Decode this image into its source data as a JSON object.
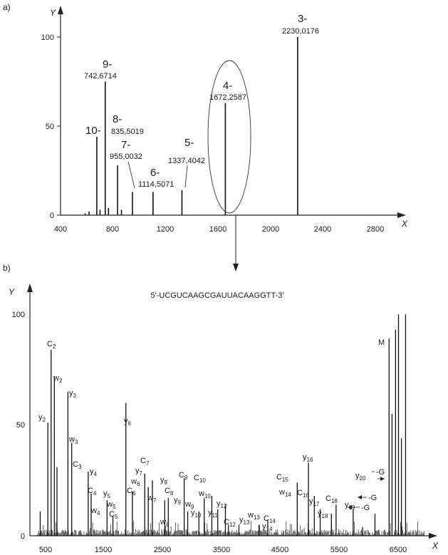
{
  "chart_data": [
    {
      "type": "bar",
      "panel": "a)",
      "xlabel": "X",
      "ylabel": "Y",
      "xlim": [
        400,
        3000
      ],
      "ylim": [
        0,
        110
      ],
      "xticks": [
        "400",
        "800",
        "1200",
        "1600",
        "2000",
        "2400",
        "2800"
      ],
      "yticks": [
        "0",
        "50",
        "100"
      ],
      "series": [
        {
          "name": "peaks",
          "x": [
            590,
            620,
            680,
            705,
            745,
            770,
            840,
            870,
            955,
            1114,
            1337,
            1672,
            2230
          ],
          "values": [
            1,
            2,
            44,
            3,
            75,
            4,
            28,
            3,
            13,
            13,
            14,
            63,
            100
          ]
        }
      ],
      "annotations": [
        {
          "charge": "10-",
          "mz": "",
          "x": 680
        },
        {
          "charge": "9-",
          "mz": "742,6714",
          "x": 745
        },
        {
          "charge": "8-",
          "mz": "835,5019",
          "x": 840
        },
        {
          "charge": "7-",
          "mz": "955,0032",
          "x": 955
        },
        {
          "charge": "6-",
          "mz": "1114,5071",
          "x": 1114
        },
        {
          "charge": "5-",
          "mz": "1337,4042",
          "x": 1337
        },
        {
          "charge": "4-",
          "mz": "1672,2587",
          "x": 1672
        },
        {
          "charge": "3-",
          "mz": "2230,0176",
          "x": 2230
        }
      ]
    },
    {
      "type": "bar",
      "panel": "b)",
      "title": "5'-UCGUCAAGCGAUUACAAGGTT-3'",
      "xlabel": "X",
      "ylabel": "Y",
      "xlim": [
        250,
        7000
      ],
      "ylim": [
        0,
        110
      ],
      "xticks": [
        "500",
        "1500",
        "2500",
        "3500",
        "4500",
        "5500",
        "6500"
      ],
      "yticks": [
        "0",
        "50",
        "100"
      ],
      "series": [
        {
          "name": "fragments",
          "x": [
            425,
            555,
            610,
            665,
            710,
            895,
            960,
            1240,
            1290,
            1560,
            1660,
            1880,
            1990,
            2200,
            2260,
            2330,
            2540,
            2600,
            2870,
            2930,
            3120,
            3210,
            3340,
            3440,
            3570,
            3620,
            3800,
            4140,
            4290,
            4790,
            4980,
            5080,
            5180,
            5370,
            5450,
            5740,
            5900,
            6110,
            6350,
            6400,
            6460,
            6510,
            6560,
            6630
          ],
          "values": [
            11,
            51,
            84,
            72,
            31,
            65,
            42,
            29,
            19,
            16,
            9,
            60,
            20,
            28,
            22,
            25,
            16,
            17,
            26,
            11,
            11,
            17,
            18,
            12,
            14,
            5,
            5,
            5,
            7,
            24,
            33,
            18,
            12,
            10,
            14,
            12,
            4,
            10,
            89,
            55,
            93,
            100,
            44,
            100
          ]
        }
      ],
      "annotations": [
        {
          "base": "C",
          "sub": "2",
          "x": 610
        },
        {
          "base": "w",
          "sub": "2",
          "x": 665
        },
        {
          "base": "y",
          "sub": "2",
          "x": 555
        },
        {
          "base": "y",
          "sub": "3",
          "x": 895
        },
        {
          "base": "w",
          "sub": "3",
          "x": 960
        },
        {
          "base": "C",
          "sub": "3",
          "x": 1000
        },
        {
          "base": "y",
          "sub": "4",
          "x": 1240
        },
        {
          "base": "C",
          "sub": "4",
          "x": 1290
        },
        {
          "base": "w",
          "sub": "4",
          "x": 1330
        },
        {
          "base": "y",
          "sub": "5",
          "x": 1560
        },
        {
          "base": "w",
          "sub": "5",
          "x": 1660
        },
        {
          "base": "C",
          "sub": "5",
          "x": 1700
        },
        {
          "base": "y",
          "sub": "6",
          "x": 1880
        },
        {
          "base": "C",
          "sub": "6",
          "x": 1990
        },
        {
          "base": "w",
          "sub": "6",
          "x": 2080
        },
        {
          "base": "y",
          "sub": "7",
          "x": 2090
        },
        {
          "base": "C",
          "sub": "7",
          "x": 2200
        },
        {
          "base": "w",
          "sub": "7",
          "x": 2330
        },
        {
          "base": "y",
          "sub": "8",
          "x": 2540
        },
        {
          "base": "C",
          "sub": "8",
          "x": 2600
        },
        {
          "base": "w",
          "sub": "8",
          "x": 2540
        },
        {
          "base": "C",
          "sub": "9",
          "x": 2870
        },
        {
          "base": "y",
          "sub": "9",
          "x": 2930
        },
        {
          "base": "w",
          "sub": "9",
          "x": 3030
        },
        {
          "base": "C",
          "sub": "10",
          "x": 3210
        },
        {
          "base": "w",
          "sub": "10",
          "x": 3340
        },
        {
          "base": "y",
          "sub": "10",
          "x": 3120
        },
        {
          "base": "y",
          "sub": "11",
          "x": 3440
        },
        {
          "base": "y",
          "sub": "12",
          "x": 3570
        },
        {
          "base": "C",
          "sub": "12",
          "x": 3620
        },
        {
          "base": "y",
          "sub": "13",
          "x": 3800
        },
        {
          "base": "w",
          "sub": "13",
          "x": 4140
        },
        {
          "base": "C",
          "sub": "14",
          "x": 4290
        },
        {
          "base": "y",
          "sub": "14",
          "x": 4240
        },
        {
          "base": "C",
          "sub": "15",
          "x": 4790
        },
        {
          "base": "w",
          "sub": "14",
          "x": 4880
        },
        {
          "base": "y",
          "sub": "16",
          "x": 4980
        },
        {
          "base": "C",
          "sub": "16",
          "x": 4980
        },
        {
          "base": "y",
          "sub": "17",
          "x": 5080
        },
        {
          "base": "y",
          "sub": "18",
          "x": 5180
        },
        {
          "base": "C",
          "sub": "18",
          "x": 5370
        },
        {
          "base": "y",
          "sub": "19",
          "x": 5740
        },
        {
          "base": "y",
          "sub": "20",
          "x": 5900
        },
        {
          "base": "-G",
          "sub": "",
          "x": 6110
        },
        {
          "base": "-G",
          "sub": "",
          "x": 6350
        },
        {
          "base": "-G",
          "sub": "",
          "x": 6400
        },
        {
          "base": "M",
          "sub": "",
          "x": 6400
        }
      ]
    }
  ]
}
